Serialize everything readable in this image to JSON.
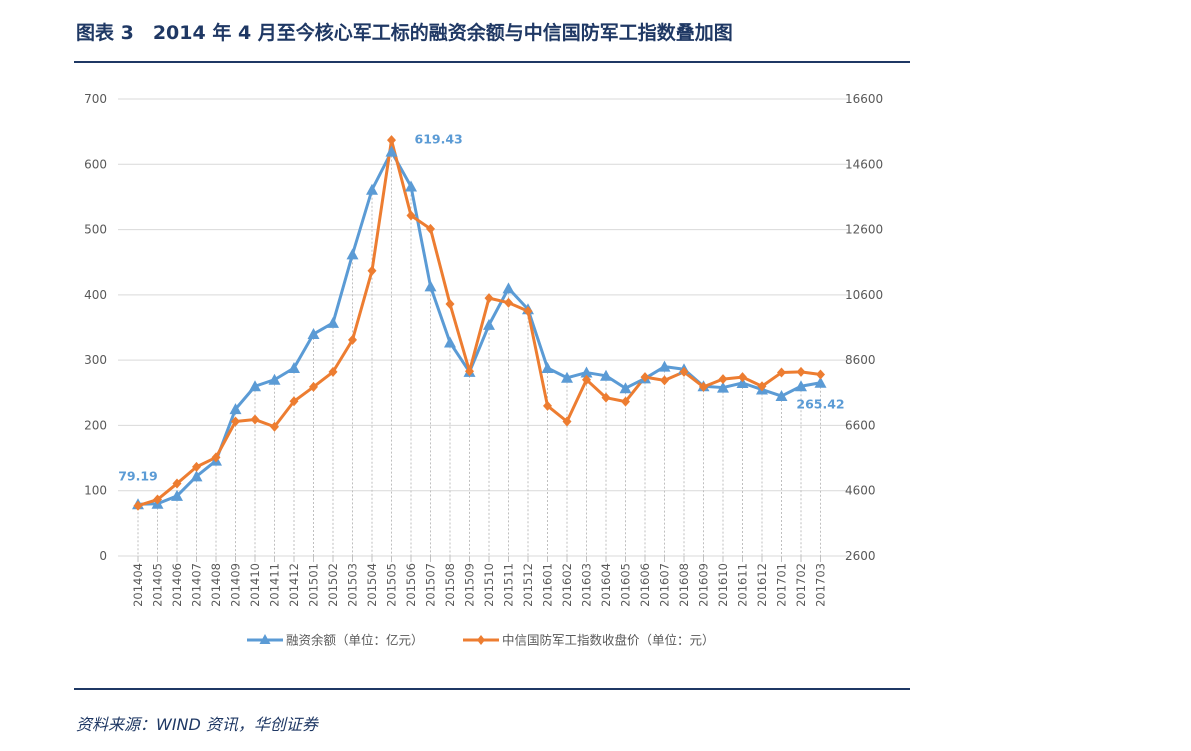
{
  "figure": {
    "title": "图表 3　2014 年 4 月至今核心军工标的融资余额与中信国防军工指数叠加图",
    "source": "资料来源：WIND 资讯，华创证券"
  },
  "colors": {
    "series1": "#5b9bd5",
    "series2": "#ed7d31",
    "rule": "#1f3864",
    "grid": "#d9d9d9"
  },
  "chart_data": {
    "type": "line",
    "title": "",
    "xlabel": "",
    "ylabel": "",
    "y_left_lim": [
      0,
      700
    ],
    "y_left_ticks": [
      "0",
      "100",
      "200",
      "300",
      "400",
      "500",
      "600",
      "700"
    ],
    "y_right_lim": [
      2600,
      16600
    ],
    "y_right_ticks": [
      "2600",
      "4600",
      "6600",
      "8600",
      "10600",
      "12600",
      "14600",
      "16600"
    ],
    "categories": [
      "201404",
      "201405",
      "201406",
      "201407",
      "201408",
      "201409",
      "201410",
      "201411",
      "201412",
      "201501",
      "201502",
      "201503",
      "201504",
      "201505",
      "201506",
      "201507",
      "201508",
      "201509",
      "201510",
      "201511",
      "201512",
      "201601",
      "201602",
      "201603",
      "201604",
      "201605",
      "201606",
      "201607",
      "201608",
      "201609",
      "201610",
      "201611",
      "201612",
      "201701",
      "201702",
      "201703"
    ],
    "series": [
      {
        "name": "融资余额（单位：亿元）",
        "axis": "left",
        "marker": "triangle",
        "values": [
          79.19,
          80,
          92,
          122,
          146,
          225,
          260,
          270,
          288,
          340,
          357,
          462,
          561,
          619.43,
          566,
          413,
          327,
          282,
          354,
          410,
          378,
          288,
          273,
          281,
          276,
          257,
          272,
          290,
          286,
          260,
          258,
          265,
          255,
          245,
          260,
          265.42
        ]
      },
      {
        "name": "中信国防军工指数收盘价（单位：元）",
        "axis": "right",
        "marker": "diamond",
        "values": [
          4140,
          4330,
          4820,
          5330,
          5620,
          6720,
          6780,
          6560,
          7340,
          7780,
          8240,
          9220,
          11340,
          15340,
          13030,
          12620,
          10320,
          8260,
          10500,
          10360,
          10100,
          7200,
          6720,
          8000,
          7450,
          7330,
          8080,
          7980,
          8240,
          7780,
          8020,
          8080,
          7800,
          8220,
          8240,
          8160
        ]
      }
    ],
    "annotations": [
      "79.19",
      "619.43",
      "265.42"
    ],
    "legend_position": "bottom"
  }
}
